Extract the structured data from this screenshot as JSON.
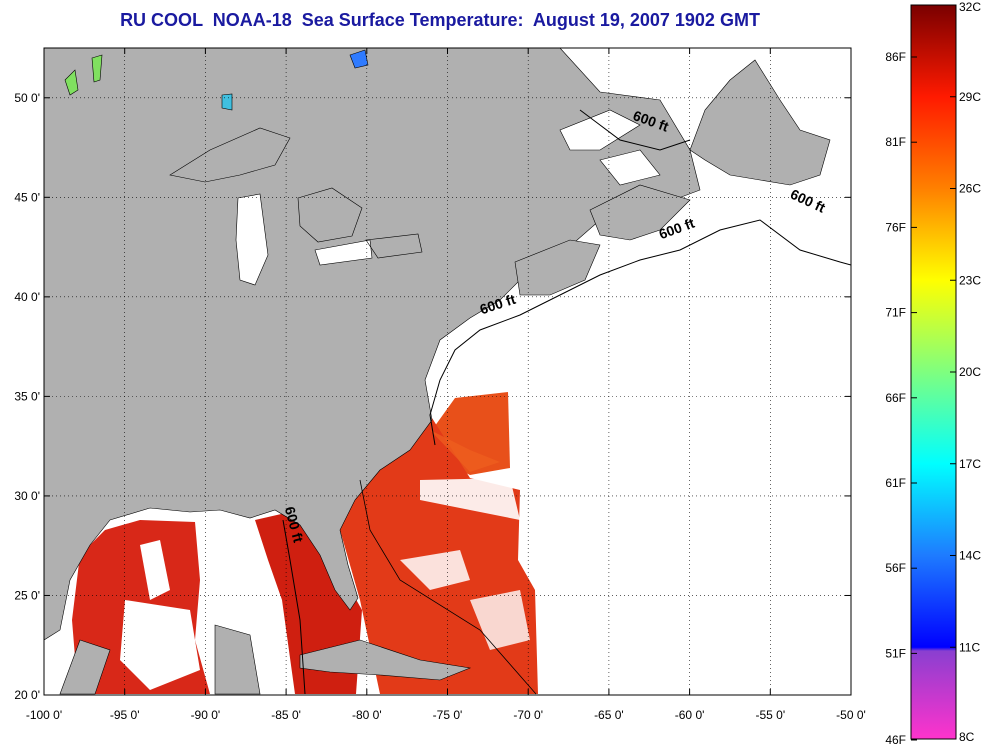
{
  "title": "RU COOL  NOAA-18  Sea Surface Temperature:  August 19, 2007 1902 GMT",
  "map": {
    "lon_range": [
      -100,
      -50
    ],
    "lat_range": [
      20,
      52.5
    ],
    "grid": true,
    "x_ticks": [
      {
        "value": -100,
        "label": "-100 0'"
      },
      {
        "value": -95,
        "label": "-95 0'"
      },
      {
        "value": -90,
        "label": "-90 0'"
      },
      {
        "value": -85,
        "label": "-85 0'"
      },
      {
        "value": -80,
        "label": "-80 0'"
      },
      {
        "value": -75,
        "label": "-75 0'"
      },
      {
        "value": -70,
        "label": "-70 0'"
      },
      {
        "value": -65,
        "label": "-65 0'"
      },
      {
        "value": -60,
        "label": "-60 0'"
      },
      {
        "value": -55,
        "label": "-55 0'"
      },
      {
        "value": -50,
        "label": "-50 0'"
      }
    ],
    "y_ticks": [
      {
        "value": 20,
        "label": "20 0'"
      },
      {
        "value": 25,
        "label": "25 0'"
      },
      {
        "value": 30,
        "label": "30 0'"
      },
      {
        "value": 35,
        "label": "35 0'"
      },
      {
        "value": 40,
        "label": "40 0'"
      },
      {
        "value": 45,
        "label": "45 0'"
      },
      {
        "value": 50,
        "label": "50 0'"
      }
    ],
    "land_color": "#b0b0b0",
    "depth_labels": [
      {
        "text": "600 ft",
        "lon": -62.5,
        "lat": 48.6,
        "rotate": 20
      },
      {
        "text": "600 ft",
        "lon": -52.8,
        "lat": 44.6,
        "rotate": 25
      },
      {
        "text": "600 ft",
        "lon": -60.7,
        "lat": 43.2,
        "rotate": -20
      },
      {
        "text": "600 ft",
        "lon": -71.8,
        "lat": 39.4,
        "rotate": -18
      },
      {
        "text": "600 ft",
        "lon": -84.8,
        "lat": 28.5,
        "rotate": 75
      }
    ]
  },
  "colorbar": {
    "min_c": 8,
    "max_c": 32,
    "celsius_labels": [
      "32C",
      "29C",
      "26C",
      "23C",
      "20C",
      "17C",
      "14C",
      "11C",
      "8C"
    ],
    "fahrenheit_labels": [
      "86F",
      "81F",
      "76F",
      "71F",
      "66F",
      "61F",
      "56F",
      "51F",
      "46F"
    ],
    "colors": [
      "#800000",
      "#ff0000",
      "#ff8000",
      "#ffff00",
      "#80ff80",
      "#00ffff",
      "#0080ff",
      "#0000ff",
      "#8040c0",
      "#ff00ff"
    ]
  }
}
